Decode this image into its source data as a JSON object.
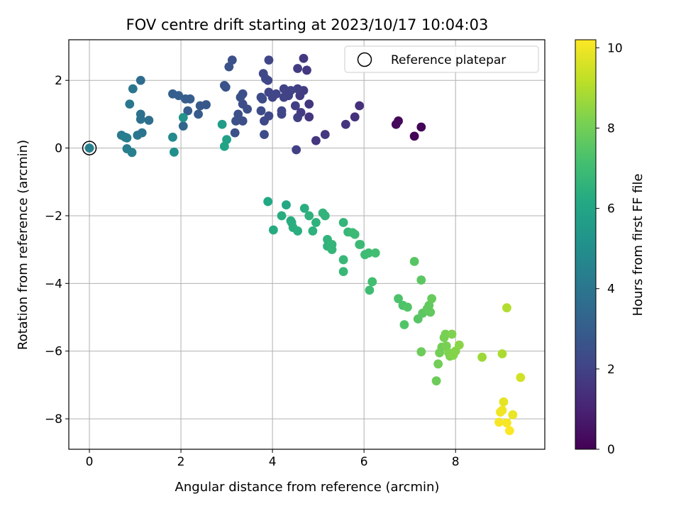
{
  "chart_data": {
    "type": "scatter",
    "title": "FOV centre drift starting at 2023/10/17 10:04:03",
    "xlabel": "Angular distance from reference (arcmin)",
    "ylabel": "Rotation from reference (arcmin)",
    "xlim": [
      -0.45,
      9.95
    ],
    "ylim": [
      -8.9,
      3.2
    ],
    "xticks": [
      0,
      2,
      4,
      6,
      8
    ],
    "yticks": [
      2,
      0,
      -2,
      -4,
      -6,
      -8
    ],
    "grid": true,
    "legend": {
      "position": "top-right",
      "entries": [
        "Reference platepar"
      ]
    },
    "reference_point": {
      "x": 0,
      "y": 0,
      "label": "Reference platepar"
    },
    "colorbar": {
      "label": "Hours from first FF file",
      "min": 0,
      "max": 10.2,
      "ticks": [
        0,
        2,
        4,
        6,
        8,
        10
      ],
      "colormap": "viridis"
    },
    "points": [
      {
        "x": 7.25,
        "y": 0.62,
        "c": 0.1
      },
      {
        "x": 7.1,
        "y": 0.35,
        "c": 0.1
      },
      {
        "x": 6.75,
        "y": 0.8,
        "c": 0.2
      },
      {
        "x": 6.7,
        "y": 0.7,
        "c": 0.2
      },
      {
        "x": 5.9,
        "y": 1.25,
        "c": 1.4
      },
      {
        "x": 5.8,
        "y": 0.92,
        "c": 1.4
      },
      {
        "x": 5.6,
        "y": 0.7,
        "c": 1.5
      },
      {
        "x": 5.15,
        "y": 0.4,
        "c": 1.6
      },
      {
        "x": 4.95,
        "y": 0.22,
        "c": 1.6
      },
      {
        "x": 4.8,
        "y": 1.3,
        "c": 1.6
      },
      {
        "x": 4.8,
        "y": 0.92,
        "c": 1.6
      },
      {
        "x": 4.75,
        "y": 2.3,
        "c": 1.7
      },
      {
        "x": 4.68,
        "y": 2.65,
        "c": 1.7
      },
      {
        "x": 4.68,
        "y": 1.7,
        "c": 1.8
      },
      {
        "x": 4.6,
        "y": 1.55,
        "c": 1.8
      },
      {
        "x": 4.62,
        "y": 1.05,
        "c": 1.8
      },
      {
        "x": 4.55,
        "y": 2.35,
        "c": 1.8
      },
      {
        "x": 4.55,
        "y": 1.75,
        "c": 1.9
      },
      {
        "x": 4.5,
        "y": 1.25,
        "c": 1.9
      },
      {
        "x": 4.55,
        "y": 0.9,
        "c": 1.9
      },
      {
        "x": 4.52,
        "y": -0.05,
        "c": 1.9
      },
      {
        "x": 4.4,
        "y": 1.7,
        "c": 2.0
      },
      {
        "x": 4.35,
        "y": 1.55,
        "c": 2.0
      },
      {
        "x": 4.25,
        "y": 1.75,
        "c": 2.0
      },
      {
        "x": 4.25,
        "y": 1.5,
        "c": 2.0
      },
      {
        "x": 4.2,
        "y": 1.1,
        "c": 2.1
      },
      {
        "x": 4.2,
        "y": 1.0,
        "c": 2.1
      },
      {
        "x": 4.08,
        "y": 1.6,
        "c": 2.1
      },
      {
        "x": 4.0,
        "y": 1.5,
        "c": 2.1
      },
      {
        "x": 3.92,
        "y": 2.6,
        "c": 2.1
      },
      {
        "x": 3.9,
        "y": 2.0,
        "c": 2.1
      },
      {
        "x": 3.92,
        "y": 1.65,
        "c": 2.1
      },
      {
        "x": 3.92,
        "y": 0.95,
        "c": 2.2
      },
      {
        "x": 3.85,
        "y": 2.05,
        "c": 2.2
      },
      {
        "x": 3.8,
        "y": 2.2,
        "c": 2.2
      },
      {
        "x": 3.82,
        "y": 0.8,
        "c": 2.2
      },
      {
        "x": 3.82,
        "y": 0.4,
        "c": 2.3
      },
      {
        "x": 3.78,
        "y": 1.45,
        "c": 2.3
      },
      {
        "x": 3.75,
        "y": 1.5,
        "c": 2.3
      },
      {
        "x": 3.75,
        "y": 1.1,
        "c": 2.3
      },
      {
        "x": 3.45,
        "y": 1.15,
        "c": 2.4
      },
      {
        "x": 3.35,
        "y": 1.6,
        "c": 2.4
      },
      {
        "x": 3.35,
        "y": 1.3,
        "c": 2.4
      },
      {
        "x": 3.35,
        "y": 0.8,
        "c": 2.4
      },
      {
        "x": 3.3,
        "y": 1.5,
        "c": 2.5
      },
      {
        "x": 3.25,
        "y": 1.0,
        "c": 2.5
      },
      {
        "x": 3.2,
        "y": 0.8,
        "c": 2.5
      },
      {
        "x": 3.18,
        "y": 0.45,
        "c": 2.5
      },
      {
        "x": 3.12,
        "y": 2.6,
        "c": 2.5
      },
      {
        "x": 3.05,
        "y": 2.4,
        "c": 2.6
      },
      {
        "x": 2.98,
        "y": 1.8,
        "c": 2.6
      },
      {
        "x": 2.95,
        "y": 1.85,
        "c": 2.6
      },
      {
        "x": 2.55,
        "y": 1.28,
        "c": 2.8
      },
      {
        "x": 2.42,
        "y": 1.25,
        "c": 2.8
      },
      {
        "x": 2.38,
        "y": 1.0,
        "c": 2.9
      },
      {
        "x": 2.2,
        "y": 1.45,
        "c": 3.0
      },
      {
        "x": 2.15,
        "y": 1.1,
        "c": 3.0
      },
      {
        "x": 2.1,
        "y": 1.45,
        "c": 3.0
      },
      {
        "x": 1.95,
        "y": 1.55,
        "c": 3.1
      },
      {
        "x": 1.82,
        "y": 1.6,
        "c": 3.1
      },
      {
        "x": 2.05,
        "y": 0.65,
        "c": 3.3
      },
      {
        "x": 1.12,
        "y": 2.0,
        "c": 3.6
      },
      {
        "x": 1.3,
        "y": 0.82,
        "c": 3.7
      },
      {
        "x": 1.12,
        "y": 0.85,
        "c": 3.8
      },
      {
        "x": 1.12,
        "y": 1.0,
        "c": 3.8
      },
      {
        "x": 1.15,
        "y": 0.45,
        "c": 3.9
      },
      {
        "x": 1.05,
        "y": 0.38,
        "c": 4.0
      },
      {
        "x": 0.95,
        "y": 1.75,
        "c": 4.0
      },
      {
        "x": 0.88,
        "y": 1.3,
        "c": 4.1
      },
      {
        "x": 0.7,
        "y": 0.38,
        "c": 4.2
      },
      {
        "x": 0.82,
        "y": 0.3,
        "c": 4.3
      },
      {
        "x": 0.78,
        "y": 0.32,
        "c": 4.3
      },
      {
        "x": 0.82,
        "y": -0.02,
        "c": 4.3
      },
      {
        "x": 0.93,
        "y": -0.13,
        "c": 4.4
      },
      {
        "x": 0.0,
        "y": 0.0,
        "c": 4.4
      },
      {
        "x": 1.82,
        "y": 0.32,
        "c": 4.8
      },
      {
        "x": 1.85,
        "y": -0.12,
        "c": 5.0
      },
      {
        "x": 2.05,
        "y": 0.9,
        "c": 5.2
      },
      {
        "x": 2.9,
        "y": 0.7,
        "c": 5.6
      },
      {
        "x": 3.0,
        "y": 0.25,
        "c": 5.8
      },
      {
        "x": 2.95,
        "y": 0.05,
        "c": 5.9
      },
      {
        "x": 3.9,
        "y": -1.58,
        "c": 6.1
      },
      {
        "x": 4.3,
        "y": -1.68,
        "c": 6.1
      },
      {
        "x": 4.02,
        "y": -2.42,
        "c": 6.2
      },
      {
        "x": 4.2,
        "y": -2.0,
        "c": 6.3
      },
      {
        "x": 4.4,
        "y": -2.15,
        "c": 6.3
      },
      {
        "x": 4.42,
        "y": -2.2,
        "c": 6.3
      },
      {
        "x": 4.45,
        "y": -2.35,
        "c": 6.4
      },
      {
        "x": 4.55,
        "y": -2.45,
        "c": 6.4
      },
      {
        "x": 4.7,
        "y": -1.78,
        "c": 6.4
      },
      {
        "x": 4.8,
        "y": -2.0,
        "c": 6.5
      },
      {
        "x": 4.88,
        "y": -2.45,
        "c": 6.5
      },
      {
        "x": 4.95,
        "y": -2.2,
        "c": 6.5
      },
      {
        "x": 5.1,
        "y": -1.92,
        "c": 6.6
      },
      {
        "x": 5.15,
        "y": -2.0,
        "c": 6.6
      },
      {
        "x": 5.2,
        "y": -2.7,
        "c": 6.6
      },
      {
        "x": 5.2,
        "y": -2.9,
        "c": 6.6
      },
      {
        "x": 5.3,
        "y": -2.85,
        "c": 6.7
      },
      {
        "x": 5.3,
        "y": -3.0,
        "c": 6.7
      },
      {
        "x": 5.55,
        "y": -2.2,
        "c": 6.7
      },
      {
        "x": 5.55,
        "y": -3.3,
        "c": 6.8
      },
      {
        "x": 5.55,
        "y": -3.65,
        "c": 6.8
      },
      {
        "x": 5.65,
        "y": -2.48,
        "c": 6.8
      },
      {
        "x": 5.75,
        "y": -2.5,
        "c": 6.9
      },
      {
        "x": 5.8,
        "y": -2.55,
        "c": 6.9
      },
      {
        "x": 5.9,
        "y": -2.85,
        "c": 6.9
      },
      {
        "x": 5.92,
        "y": -2.85,
        "c": 6.9
      },
      {
        "x": 6.02,
        "y": -3.15,
        "c": 7.0
      },
      {
        "x": 6.1,
        "y": -3.1,
        "c": 7.0
      },
      {
        "x": 6.12,
        "y": -4.2,
        "c": 7.0
      },
      {
        "x": 6.18,
        "y": -3.95,
        "c": 7.1
      },
      {
        "x": 6.25,
        "y": -3.1,
        "c": 7.1
      },
      {
        "x": 6.75,
        "y": -4.45,
        "c": 7.3
      },
      {
        "x": 6.85,
        "y": -4.65,
        "c": 7.3
      },
      {
        "x": 6.88,
        "y": -5.22,
        "c": 7.4
      },
      {
        "x": 6.95,
        "y": -4.7,
        "c": 7.4
      },
      {
        "x": 7.1,
        "y": -3.35,
        "c": 7.5
      },
      {
        "x": 7.18,
        "y": -5.05,
        "c": 7.5
      },
      {
        "x": 7.25,
        "y": -3.9,
        "c": 7.6
      },
      {
        "x": 7.28,
        "y": -4.88,
        "c": 7.6
      },
      {
        "x": 7.38,
        "y": -4.75,
        "c": 7.7
      },
      {
        "x": 7.42,
        "y": -4.65,
        "c": 7.7
      },
      {
        "x": 7.45,
        "y": -4.85,
        "c": 7.7
      },
      {
        "x": 7.48,
        "y": -4.45,
        "c": 7.8
      },
      {
        "x": 7.25,
        "y": -6.02,
        "c": 7.9
      },
      {
        "x": 7.58,
        "y": -6.88,
        "c": 7.9
      },
      {
        "x": 7.62,
        "y": -6.38,
        "c": 8.0
      },
      {
        "x": 7.65,
        "y": -6.05,
        "c": 8.0
      },
      {
        "x": 7.7,
        "y": -5.88,
        "c": 8.0
      },
      {
        "x": 7.75,
        "y": -5.6,
        "c": 8.1
      },
      {
        "x": 7.78,
        "y": -5.5,
        "c": 8.1
      },
      {
        "x": 7.8,
        "y": -5.85,
        "c": 8.1
      },
      {
        "x": 7.85,
        "y": -6.05,
        "c": 8.2
      },
      {
        "x": 7.88,
        "y": -6.15,
        "c": 8.2
      },
      {
        "x": 7.92,
        "y": -5.5,
        "c": 8.2
      },
      {
        "x": 7.95,
        "y": -6.12,
        "c": 8.3
      },
      {
        "x": 8.0,
        "y": -6.0,
        "c": 8.3
      },
      {
        "x": 8.08,
        "y": -5.82,
        "c": 8.4
      },
      {
        "x": 8.58,
        "y": -6.18,
        "c": 8.7
      },
      {
        "x": 9.02,
        "y": -6.08,
        "c": 8.9
      },
      {
        "x": 9.12,
        "y": -4.72,
        "c": 9.0
      },
      {
        "x": 9.42,
        "y": -6.78,
        "c": 9.5
      },
      {
        "x": 9.05,
        "y": -7.5,
        "c": 9.8
      },
      {
        "x": 9.25,
        "y": -7.88,
        "c": 9.9
      },
      {
        "x": 8.98,
        "y": -7.8,
        "c": 10.0
      },
      {
        "x": 9.02,
        "y": -7.75,
        "c": 10.0
      },
      {
        "x": 8.95,
        "y": -8.1,
        "c": 10.1
      },
      {
        "x": 9.12,
        "y": -8.12,
        "c": 10.1
      },
      {
        "x": 9.18,
        "y": -8.35,
        "c": 10.2
      }
    ]
  }
}
